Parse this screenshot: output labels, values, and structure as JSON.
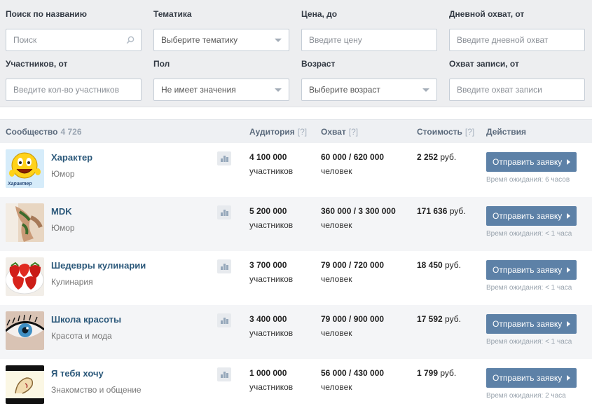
{
  "filters": [
    {
      "label": "Поиск по названию",
      "placeholder": "Поиск",
      "type": "search"
    },
    {
      "label": "Тематика",
      "value": "Выберите тематику",
      "type": "select"
    },
    {
      "label": "Цена, до",
      "placeholder": "Введите цену",
      "type": "input"
    },
    {
      "label": "Дневной охват, от",
      "placeholder": "Введите дневной охват",
      "type": "input"
    },
    {
      "label": "Участников, от",
      "placeholder": "Введите кол-во участников",
      "type": "input"
    },
    {
      "label": "Пол",
      "value": "Не имеет значения",
      "type": "select"
    },
    {
      "label": "Возраст",
      "value": "Выберите возраст",
      "type": "select"
    },
    {
      "label": "Охват записи, от",
      "placeholder": "Введите охват записи",
      "type": "input"
    }
  ],
  "table": {
    "headers": {
      "community": "Сообщество",
      "community_count": "4 726",
      "audience": "Аудитория",
      "reach": "Охват",
      "cost": "Стоимость",
      "actions": "Действия",
      "help": "[?]"
    },
    "rows": [
      {
        "name": "Характер",
        "category": "Юмор",
        "audience": "4 100 000",
        "audience_unit": "участников",
        "reach": "60 000 / 620 000",
        "reach_unit": "человек",
        "cost": "2 252",
        "currency": "руб.",
        "action": "Отправить заявку",
        "wait": "Время ожидания: 6 часов",
        "avatar_text": "Характер"
      },
      {
        "name": "MDK",
        "category": "Юмор",
        "audience": "5 200 000",
        "audience_unit": "участников",
        "reach": "360 000 / 3 300 000",
        "reach_unit": "человек",
        "cost": "171 636",
        "currency": "руб.",
        "action": "Отправить заявку",
        "wait": "Время ожидания: < 1 часа"
      },
      {
        "name": "Шедевры кулинарии",
        "category": "Кулинария",
        "audience": "3 700 000",
        "audience_unit": "участников",
        "reach": "79 000 / 720 000",
        "reach_unit": "человек",
        "cost": "18 450",
        "currency": "руб.",
        "action": "Отправить заявку",
        "wait": "Время ожидания: < 1 часа"
      },
      {
        "name": "Школа красоты",
        "category": "Красота и мода",
        "audience": "3 400 000",
        "audience_unit": "участников",
        "reach": "79 000 / 900 000",
        "reach_unit": "человек",
        "cost": "17 592",
        "currency": "руб.",
        "action": "Отправить заявку",
        "wait": "Время ожидания: < 1 часа"
      },
      {
        "name": "Я тебя хочу",
        "category": "Знакомство и общение",
        "audience": "1 000 000",
        "audience_unit": "участников",
        "reach": "56 000 / 430 000",
        "reach_unit": "человек",
        "cost": "1 799",
        "currency": "руб.",
        "action": "Отправить заявку",
        "wait": "Время ожидания: 2 часа"
      }
    ]
  },
  "colors": {
    "link": "#2b587a",
    "button": "#5d81a7",
    "filters_bg": "#edeef0",
    "header_bg": "#eef0f3",
    "alt_row_bg": "#f4f5f7"
  },
  "icons": {
    "search": "magnifier-icon",
    "dropdown": "chevron-down-icon",
    "stats": "bar-chart-icon",
    "button_arrow": "arrow-right-icon"
  }
}
